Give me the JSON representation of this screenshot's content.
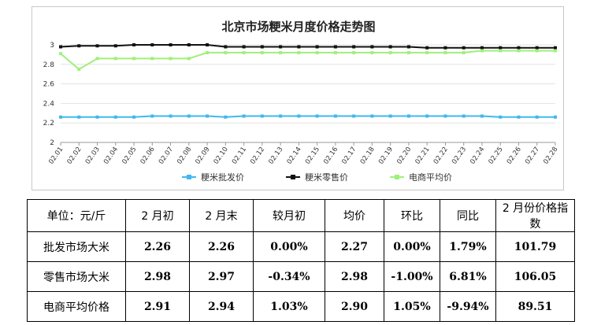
{
  "chart_data": {
    "type": "line",
    "title": "北京市场粳米月度价格走势图",
    "categories": [
      "02.01",
      "02.02",
      "02.03",
      "02.04",
      "02.05",
      "02.06",
      "02.07",
      "02.08",
      "02.09",
      "02.10",
      "02.11",
      "02.12",
      "02.13",
      "02.14",
      "02.15",
      "02.16",
      "02.17",
      "02.18",
      "02.19",
      "02.20",
      "02.21",
      "02.22",
      "02.23",
      "02.24",
      "02.25",
      "02.26",
      "02.27",
      "02.28"
    ],
    "ylim": [
      2,
      3
    ],
    "yticks": [
      "2",
      "2.2",
      "2.4",
      "2.6",
      "2.8",
      "3"
    ],
    "grid": "horizontal",
    "legend_position": "bottom",
    "series": [
      {
        "name": "粳米批发价",
        "color": "#3fb8f0",
        "marker": "square",
        "values": [
          2.26,
          2.26,
          2.26,
          2.26,
          2.26,
          2.27,
          2.27,
          2.27,
          2.27,
          2.26,
          2.27,
          2.27,
          2.27,
          2.27,
          2.27,
          2.27,
          2.27,
          2.27,
          2.27,
          2.27,
          2.27,
          2.27,
          2.27,
          2.27,
          2.26,
          2.26,
          2.26,
          2.26
        ]
      },
      {
        "name": "粳米零售价",
        "color": "#111111",
        "marker": "square",
        "values": [
          2.98,
          2.99,
          2.99,
          2.99,
          3.0,
          3.0,
          3.0,
          3.0,
          3.0,
          2.98,
          2.98,
          2.98,
          2.98,
          2.98,
          2.98,
          2.98,
          2.98,
          2.98,
          2.98,
          2.98,
          2.97,
          2.97,
          2.97,
          2.97,
          2.97,
          2.97,
          2.97,
          2.97
        ]
      },
      {
        "name": "电商平均价",
        "color": "#9ef07a",
        "marker": "square",
        "values": [
          2.91,
          2.75,
          2.86,
          2.86,
          2.86,
          2.86,
          2.86,
          2.86,
          2.92,
          2.92,
          2.92,
          2.92,
          2.92,
          2.92,
          2.92,
          2.92,
          2.92,
          2.92,
          2.92,
          2.92,
          2.92,
          2.92,
          2.92,
          2.94,
          2.94,
          2.94,
          2.94,
          2.94
        ]
      }
    ]
  },
  "table": {
    "headers": [
      "单位：元/斤",
      "2 月初",
      "2 月末",
      "较月初",
      "均价",
      "环比",
      "同比",
      "2 月份价格指数"
    ],
    "rows": [
      [
        "批发市场大米",
        "2.26",
        "2.26",
        "0.00%",
        "2.27",
        "0.00%",
        "1.79%",
        "101.79"
      ],
      [
        "零售市场大米",
        "2.98",
        "2.97",
        "-0.34%",
        "2.98",
        "-1.00%",
        "6.81%",
        "106.05"
      ],
      [
        "电商平均价格",
        "2.91",
        "2.94",
        "1.03%",
        "2.90",
        "1.05%",
        "-9.94%",
        "89.51"
      ]
    ]
  }
}
